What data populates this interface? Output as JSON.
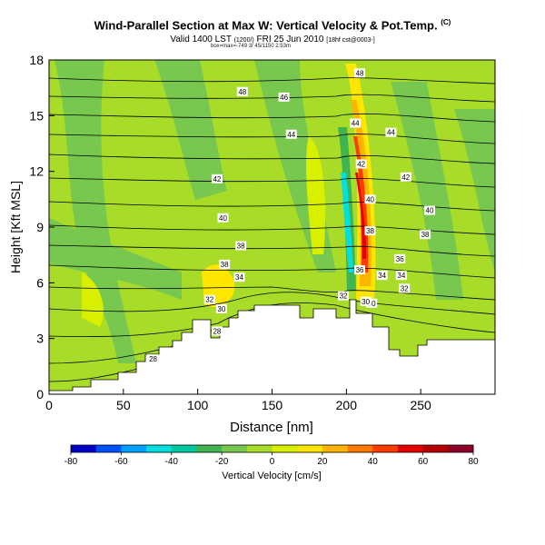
{
  "header": {
    "title": "Wind-Parallel Section at Max W: Vertical Velocity & Pot.Temp.",
    "title_tag": "(C)",
    "subtitle_main": "Valid 1400 LST",
    "subtitle_mid": "(1200/)",
    "subtitle_date": "FRI 25 Jun 2010",
    "subtitle_tail": "[18hf cst@0003-]",
    "subtitle_line2": "box=max=-749 3/ 45/1150 2:53m"
  },
  "chart_data": {
    "type": "heatmap",
    "title": "Wind-Parallel Section at Max W: Vertical Velocity & Pot.Temp.",
    "xlabel": "Distance [nm]",
    "ylabel": "Height [Kft MSL]",
    "xlim": [
      0,
      300
    ],
    "ylim": [
      0,
      18
    ],
    "x_ticks": [
      "0",
      "50",
      "100",
      "150",
      "200",
      "250"
    ],
    "y_ticks": [
      "0",
      "3",
      "6",
      "9",
      "12",
      "15",
      "18"
    ],
    "colorbar": {
      "label": "Vertical Velocity [cm/s]",
      "ticks": [
        "-80",
        "-60",
        "-40",
        "-20",
        "0",
        "20",
        "40",
        "60",
        "80"
      ],
      "colors": [
        "#0000c8",
        "#0050ff",
        "#00a0ff",
        "#00e0e0",
        "#00c8a0",
        "#40b450",
        "#78c850",
        "#a8dc28",
        "#d8f000",
        "#ffe600",
        "#ffb400",
        "#ff7800",
        "#ff3c00",
        "#e60000",
        "#b40000",
        "#8c0028"
      ]
    },
    "contour_labels": [
      {
        "text": "48",
        "x": 130,
        "y": 16.3
      },
      {
        "text": "46",
        "x": 158,
        "y": 16.0
      },
      {
        "text": "48",
        "x": 209,
        "y": 17.3
      },
      {
        "text": "44",
        "x": 163,
        "y": 14.0
      },
      {
        "text": "44",
        "x": 230,
        "y": 14.1
      },
      {
        "text": "44",
        "x": 206,
        "y": 14.6
      },
      {
        "text": "42",
        "x": 113,
        "y": 11.6
      },
      {
        "text": "42",
        "x": 210,
        "y": 12.4
      },
      {
        "text": "42",
        "x": 240,
        "y": 11.7
      },
      {
        "text": "40",
        "x": 117,
        "y": 9.5
      },
      {
        "text": "40",
        "x": 216,
        "y": 10.5
      },
      {
        "text": "40",
        "x": 256,
        "y": 9.9
      },
      {
        "text": "38",
        "x": 129,
        "y": 8.0
      },
      {
        "text": "38",
        "x": 253,
        "y": 8.6
      },
      {
        "text": "38",
        "x": 216,
        "y": 8.8
      },
      {
        "text": "38",
        "x": 118,
        "y": 7.0
      },
      {
        "text": "36",
        "x": 236,
        "y": 7.3
      },
      {
        "text": "36",
        "x": 209,
        "y": 6.7
      },
      {
        "text": "34",
        "x": 128,
        "y": 6.3
      },
      {
        "text": "34",
        "x": 237,
        "y": 6.4
      },
      {
        "text": "34",
        "x": 224,
        "y": 6.4
      },
      {
        "text": "32",
        "x": 108,
        "y": 5.1
      },
      {
        "text": "32",
        "x": 239,
        "y": 5.7
      },
      {
        "text": "32",
        "x": 198,
        "y": 5.3
      },
      {
        "text": "30",
        "x": 116,
        "y": 4.6
      },
      {
        "text": "30",
        "x": 217,
        "y": 4.9
      },
      {
        "text": "30",
        "x": 213,
        "y": 5.0
      },
      {
        "text": "28",
        "x": 113,
        "y": 3.4
      },
      {
        "text": "28",
        "x": 70,
        "y": 1.9
      }
    ]
  }
}
